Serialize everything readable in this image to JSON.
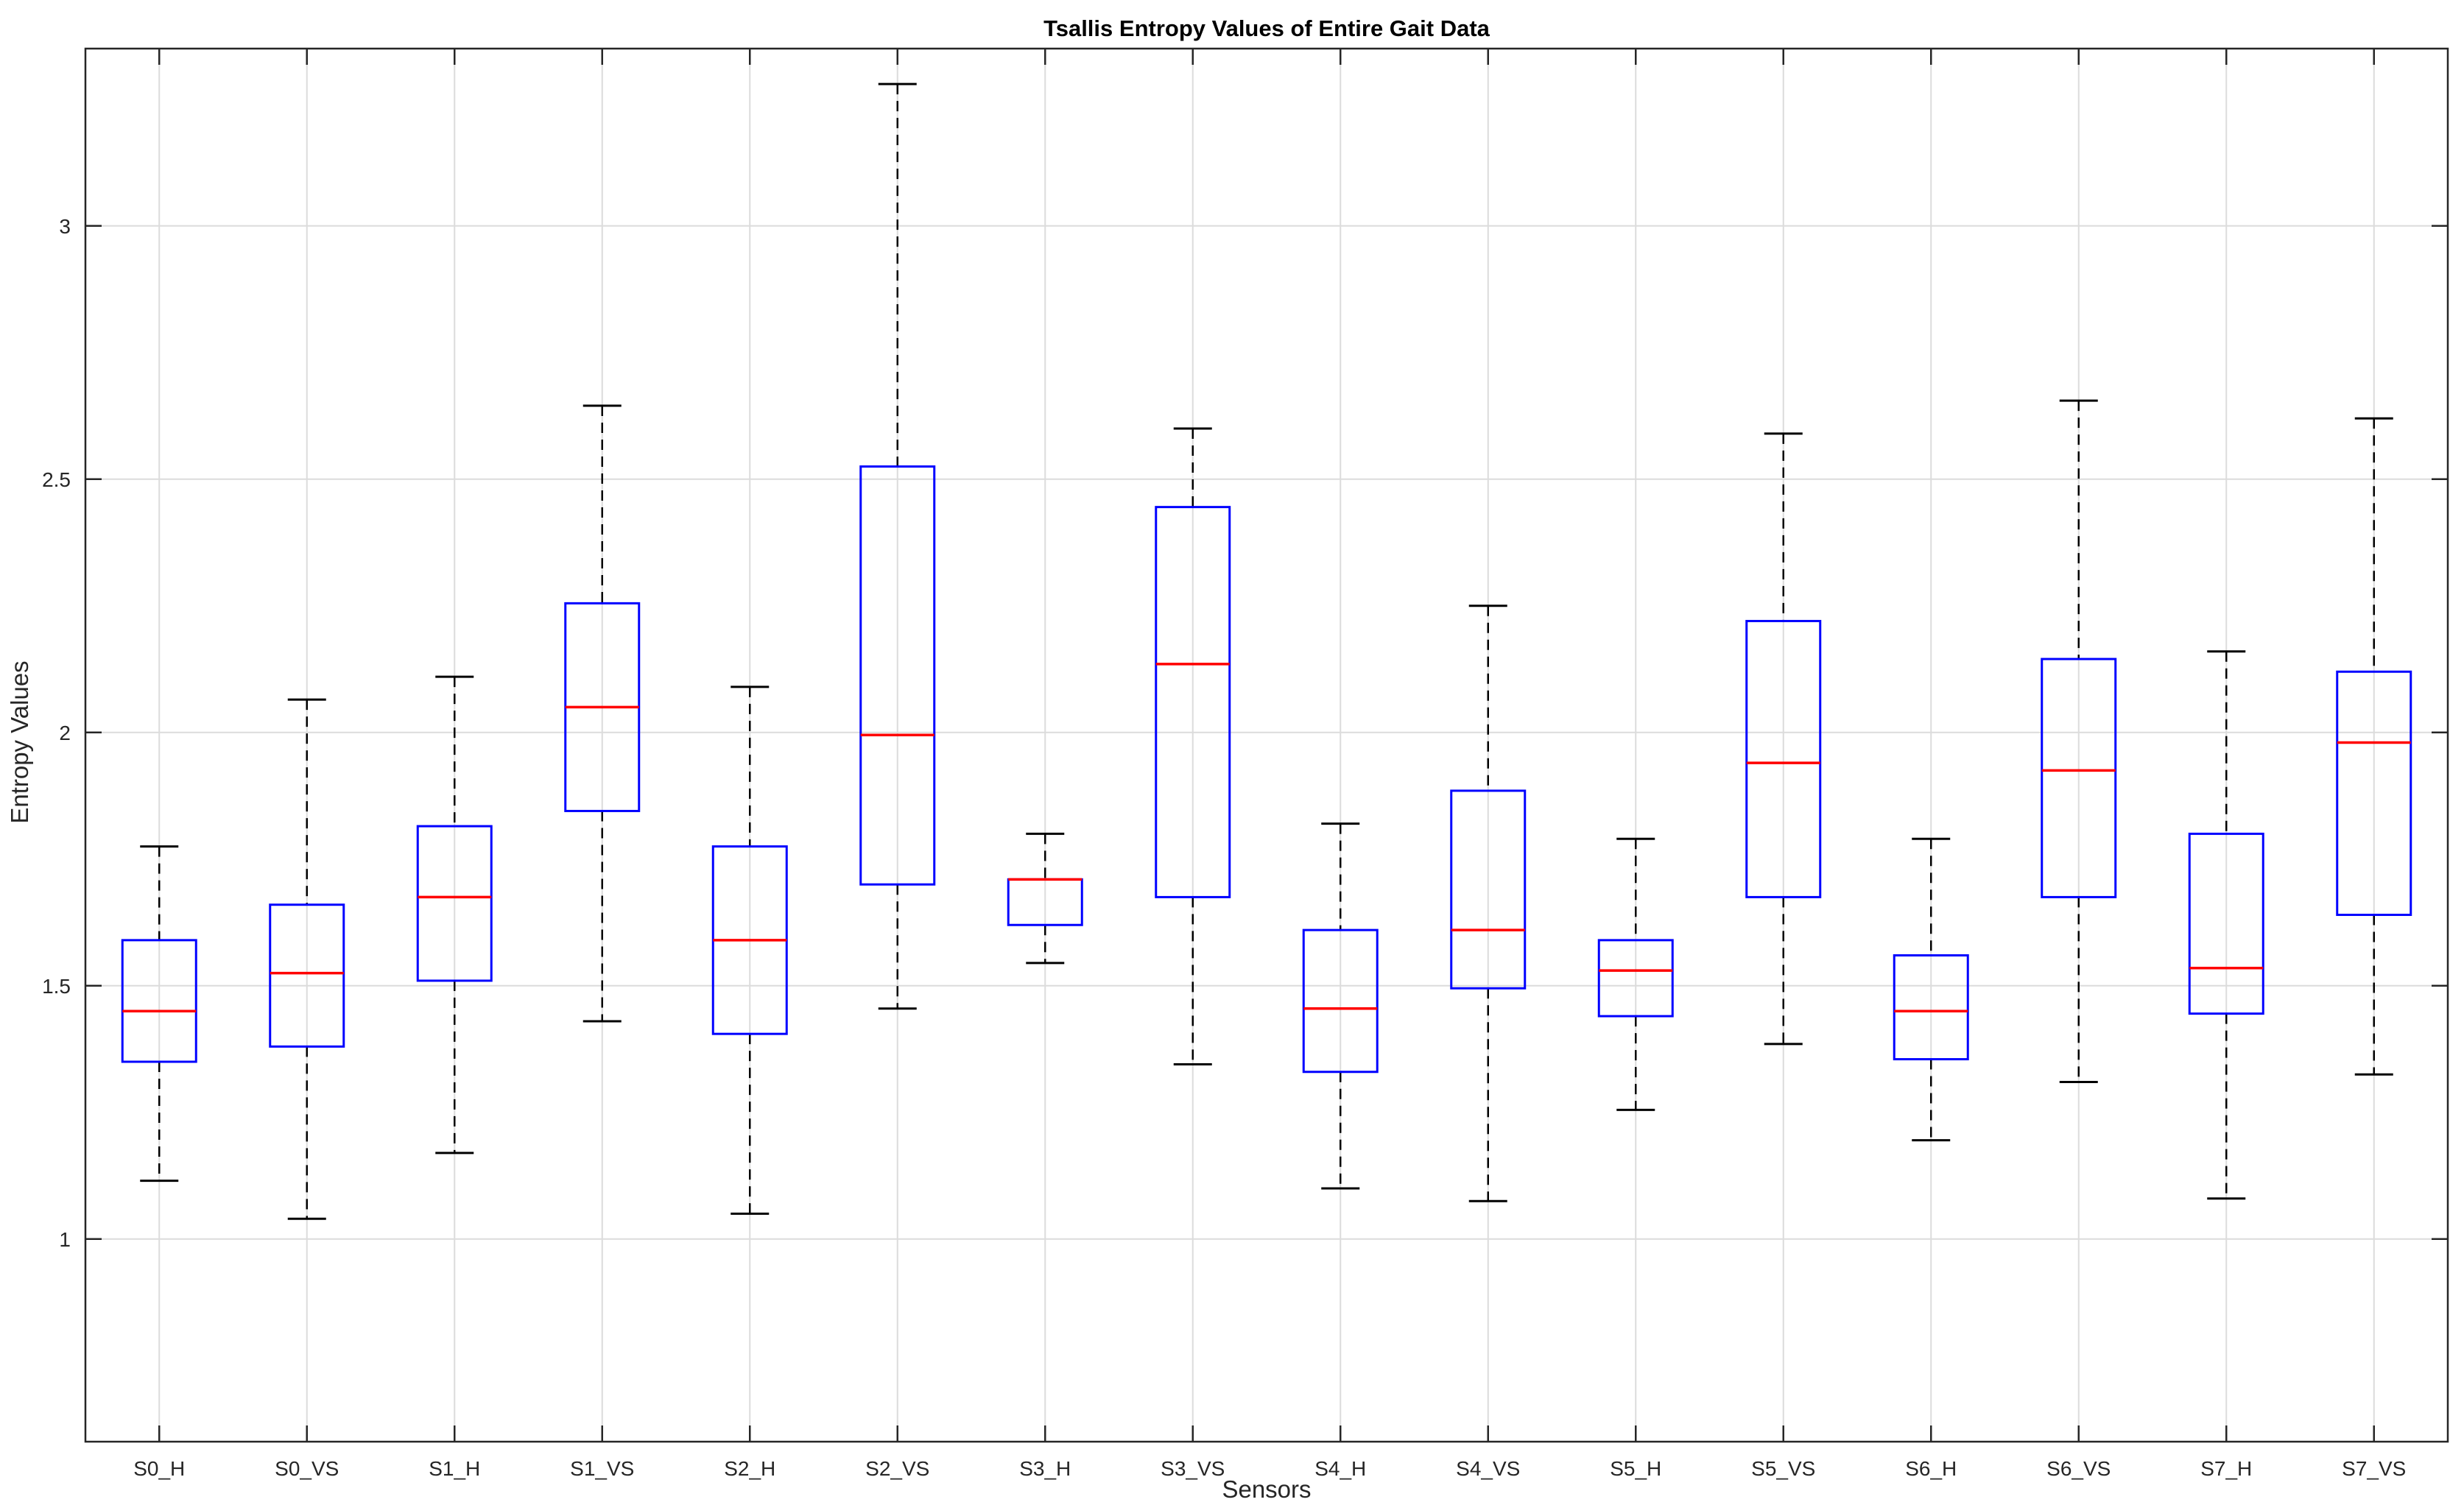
{
  "chart_data": {
    "type": "box",
    "title": "Tsallis Entropy Values of Entire Gait Data",
    "xlabel": "Sensors",
    "ylabel": "Entropy Values",
    "ylim": [
      0.6,
      3.35
    ],
    "yticks": [
      1,
      1.5,
      2,
      2.5,
      3
    ],
    "ytick_labels": [
      "1",
      "1.5",
      "2",
      "2.5",
      "3"
    ],
    "grid": true,
    "colors": {
      "box": "#0000ff",
      "median": "#ff0000",
      "whisker": "#000000",
      "grid": "#dcdcdc",
      "axis": "#262626"
    },
    "categories": [
      "S0_H",
      "S0_VS",
      "S1_H",
      "S1_VS",
      "S2_H",
      "S2_VS",
      "S3_H",
      "S3_VS",
      "S4_H",
      "S4_VS",
      "S5_H",
      "S5_VS",
      "S6_H",
      "S6_VS",
      "S7_H",
      "S7_VS"
    ],
    "boxes": [
      {
        "min": 1.115,
        "q1": 1.35,
        "median": 1.45,
        "q3": 1.59,
        "max": 1.775
      },
      {
        "min": 1.04,
        "q1": 1.38,
        "median": 1.525,
        "q3": 1.66,
        "max": 2.065
      },
      {
        "min": 1.17,
        "q1": 1.51,
        "median": 1.675,
        "q3": 1.815,
        "max": 2.11
      },
      {
        "min": 1.43,
        "q1": 1.845,
        "median": 2.05,
        "q3": 2.255,
        "max": 2.645
      },
      {
        "min": 1.05,
        "q1": 1.405,
        "median": 1.59,
        "q3": 1.775,
        "max": 2.09
      },
      {
        "min": 1.455,
        "q1": 1.7,
        "median": 1.995,
        "q3": 2.525,
        "max": 3.28
      },
      {
        "min": 1.545,
        "q1": 1.62,
        "median": 1.71,
        "q3": 1.71,
        "max": 1.8
      },
      {
        "min": 1.345,
        "q1": 1.675,
        "median": 2.135,
        "q3": 2.445,
        "max": 2.6
      },
      {
        "min": 1.1,
        "q1": 1.33,
        "median": 1.455,
        "q3": 1.61,
        "max": 1.82
      },
      {
        "min": 1.075,
        "q1": 1.495,
        "median": 1.61,
        "q3": 1.885,
        "max": 2.25
      },
      {
        "min": 1.255,
        "q1": 1.44,
        "median": 1.53,
        "q3": 1.59,
        "max": 1.79
      },
      {
        "min": 1.385,
        "q1": 1.675,
        "median": 1.94,
        "q3": 2.22,
        "max": 2.59
      },
      {
        "min": 1.195,
        "q1": 1.355,
        "median": 1.45,
        "q3": 1.56,
        "max": 1.79
      },
      {
        "min": 1.31,
        "q1": 1.675,
        "median": 1.925,
        "q3": 2.145,
        "max": 2.655
      },
      {
        "min": 1.08,
        "q1": 1.445,
        "median": 1.535,
        "q3": 1.8,
        "max": 2.16
      },
      {
        "min": 1.325,
        "q1": 1.64,
        "median": 1.98,
        "q3": 2.12,
        "max": 2.62
      }
    ]
  }
}
